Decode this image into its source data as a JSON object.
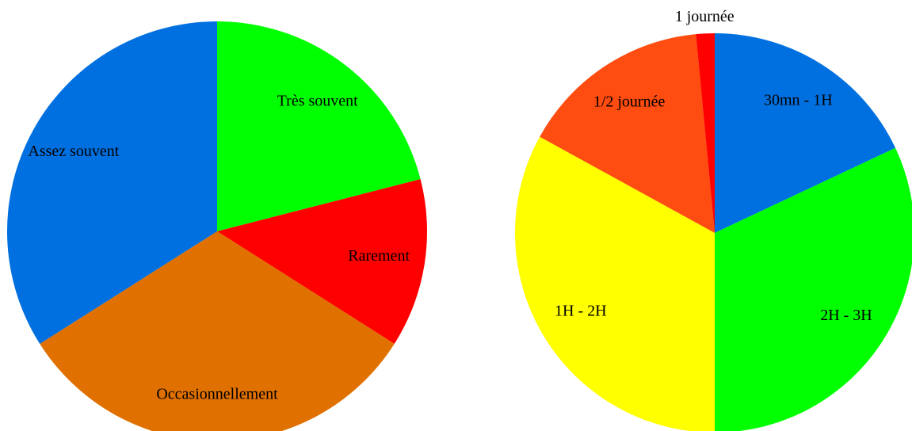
{
  "chart_data": [
    {
      "type": "pie",
      "categories": [
        "Très souvent",
        "Rarement",
        "Occasionnellement",
        "Assez souvent"
      ],
      "values": [
        21,
        13,
        32,
        34
      ],
      "colors": [
        "#00ff00",
        "#ff0000",
        "#e07000",
        "#0070e0"
      ]
    },
    {
      "type": "pie",
      "categories": [
        "30mn - 1H",
        "2H - 3H",
        "1H - 2H",
        "1/2 journée",
        "1 journée"
      ],
      "values": [
        18,
        32,
        33,
        15.5,
        1.5
      ],
      "colors": [
        "#0070e0",
        "#00ff00",
        "#ffff00",
        "#ff4c10",
        "#ff0000"
      ]
    }
  ]
}
